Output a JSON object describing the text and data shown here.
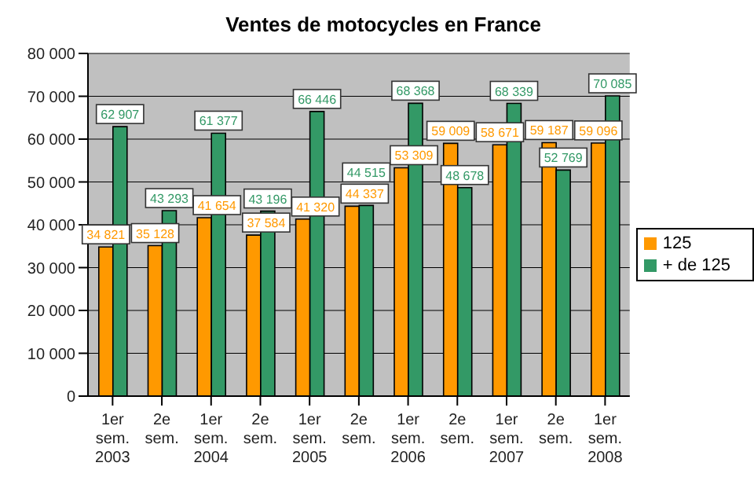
{
  "chart_data": {
    "type": "bar",
    "title": "Ventes de motocycles en France",
    "categories": [
      "1er\nsem.\n2003",
      "2e\nsem.",
      "1er\nsem.\n2004",
      "2e\nsem.",
      "1er\nsem.\n2005",
      "2e\nsem.",
      "1er\nsem.\n2006",
      "2e\nsem.",
      "1er\nsem.\n2007",
      "2e\nsem.",
      "1er\nsem.\n2008"
    ],
    "series": [
      {
        "name": "125",
        "color": "#ff9900",
        "values": [
          34821,
          35128,
          41654,
          37584,
          41320,
          44337,
          53309,
          59009,
          58671,
          59187,
          59096
        ],
        "value_labels": [
          "34 821",
          "35 128",
          "41 654",
          "37 584",
          "41 320",
          "44 337",
          "53 309",
          "59 009",
          "58 671",
          "59 187",
          "59 096"
        ]
      },
      {
        "name": "+ de 125",
        "color": "#339966",
        "values": [
          62907,
          43293,
          61377,
          43196,
          66446,
          44515,
          68368,
          48678,
          68339,
          52769,
          70085
        ],
        "value_labels": [
          "62 907",
          "43 293",
          "61 377",
          "43 196",
          "66 446",
          "44 515",
          "68 368",
          "48 678",
          "68 339",
          "52 769",
          "70 085"
        ]
      }
    ],
    "ylim": [
      0,
      80000
    ],
    "yticks": [
      0,
      {
        "value": 10000,
        "label": "10 000"
      },
      {
        "value": 20000,
        "label": "20 000"
      },
      {
        "value": 30000,
        "label": "30 000"
      },
      {
        "value": 40000,
        "label": "40 000"
      },
      {
        "value": 50000,
        "label": "50 000"
      },
      {
        "value": 60000,
        "label": "60 000"
      },
      {
        "value": 70000,
        "label": "70 000"
      },
      {
        "value": 80000,
        "label": "80 000"
      }
    ],
    "grid": "y",
    "legend": "right"
  }
}
